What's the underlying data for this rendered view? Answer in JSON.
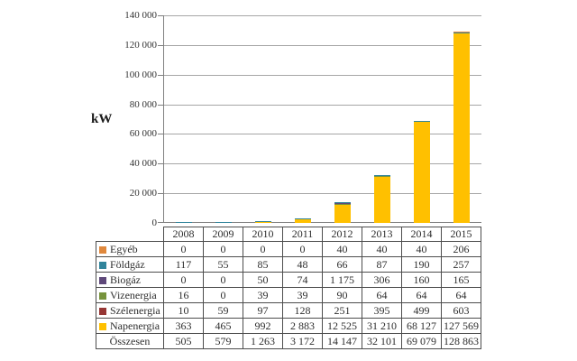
{
  "chart": {
    "y_axis_title": "kW",
    "y_tick_labels": [
      "140 000",
      "120 000",
      "100 000",
      "80 000",
      "60 000",
      "40 000",
      "20 000",
      "0"
    ]
  },
  "chart_data": {
    "type": "bar",
    "stacked": true,
    "title": "",
    "xlabel": "",
    "ylabel": "kW",
    "ylim": [
      0,
      140000
    ],
    "y_tick_step": 20000,
    "grid": true,
    "legend_position": "table-below-chart",
    "categories": [
      "2008",
      "2009",
      "2010",
      "2011",
      "2012",
      "2013",
      "2014",
      "2015"
    ],
    "series": [
      {
        "name": "Napenergia",
        "color": "#FFC000",
        "values": [
          363,
          465,
          992,
          2883,
          12525,
          31210,
          68127,
          127569
        ]
      },
      {
        "name": "Szélenergia",
        "color": "#963634",
        "values": [
          10,
          59,
          97,
          128,
          251,
          395,
          499,
          603
        ]
      },
      {
        "name": "Vizenergia",
        "color": "#77933C",
        "values": [
          16,
          0,
          39,
          39,
          90,
          64,
          64,
          64
        ]
      },
      {
        "name": "Biogáz",
        "color": "#5F497A",
        "values": [
          0,
          0,
          50,
          74,
          1175,
          306,
          160,
          165
        ]
      },
      {
        "name": "Földgáz",
        "color": "#31849B",
        "values": [
          117,
          55,
          85,
          48,
          66,
          87,
          190,
          257
        ]
      },
      {
        "name": "Egyéb",
        "color": "#E0883C",
        "values": [
          0,
          0,
          0,
          0,
          40,
          40,
          40,
          206
        ]
      }
    ],
    "totals": [
      505,
      579,
      1263,
      3172,
      14147,
      32101,
      69079,
      128863
    ]
  },
  "table": {
    "year_headers": [
      "2008",
      "2009",
      "2010",
      "2011",
      "2012",
      "2013",
      "2014",
      "2015"
    ],
    "rows": [
      {
        "label": "Egyéb",
        "swatch_color": "#E0883C",
        "values": [
          "0",
          "0",
          "0",
          "0",
          "40",
          "40",
          "40",
          "206"
        ]
      },
      {
        "label": "Földgáz",
        "swatch_color": "#31849B",
        "values": [
          "117",
          "55",
          "85",
          "48",
          "66",
          "87",
          "190",
          "257"
        ]
      },
      {
        "label": "Biogáz",
        "swatch_color": "#5F497A",
        "values": [
          "0",
          "0",
          "50",
          "74",
          "1 175",
          "306",
          "160",
          "165"
        ]
      },
      {
        "label": "Vizenergia",
        "swatch_color": "#77933C",
        "values": [
          "16",
          "0",
          "39",
          "39",
          "90",
          "64",
          "64",
          "64"
        ]
      },
      {
        "label": "Szélenergia",
        "swatch_color": "#963634",
        "values": [
          "10",
          "59",
          "97",
          "128",
          "251",
          "395",
          "499",
          "603"
        ]
      },
      {
        "label": "Napenergia",
        "swatch_color": "#FFC000",
        "values": [
          "363",
          "465",
          "992",
          "2 883",
          "12 525",
          "31 210",
          "68 127",
          "127 569"
        ]
      },
      {
        "label": "Összesen",
        "swatch_color": null,
        "values": [
          "505",
          "579",
          "1 263",
          "3 172",
          "14 147",
          "32 101",
          "69 079",
          "128 863"
        ]
      }
    ]
  },
  "colors": {
    "gridline": "#A6A6A6",
    "axis": "#808080",
    "table_border": "#4D4D4D",
    "text": "#333333",
    "background": "#FFFFFF"
  }
}
